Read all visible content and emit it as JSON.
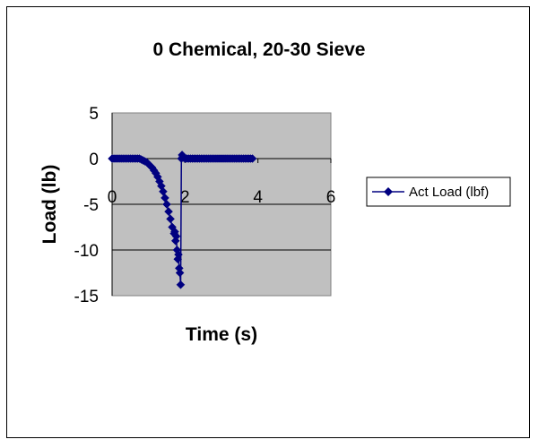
{
  "chart_data": {
    "type": "scatter",
    "title": "0 Chemical, 20-30 Sieve",
    "xlabel": "Time (s)",
    "ylabel": "Load (lb)",
    "xlim": [
      0,
      6
    ],
    "ylim": [
      -15,
      5
    ],
    "xticks": [
      "0",
      "2",
      "4",
      "6"
    ],
    "yticks": [
      "5",
      "0",
      "-5",
      "-10",
      "-15"
    ],
    "grid": true,
    "legend_position": "right",
    "plot_background": "#c0c0c0",
    "series": [
      {
        "name": "Act Load (lbf)",
        "color": "#000080",
        "marker": "diamond",
        "line": true,
        "x": [
          0,
          0.05,
          0.1,
          0.15,
          0.2,
          0.25,
          0.3,
          0.35,
          0.4,
          0.45,
          0.5,
          0.55,
          0.6,
          0.65,
          0.7,
          0.75,
          0.8,
          0.85,
          0.9,
          0.95,
          1.0,
          1.05,
          1.1,
          1.15,
          1.2,
          1.25,
          1.3,
          1.35,
          1.4,
          1.45,
          1.5,
          1.55,
          1.6,
          1.65,
          1.7,
          1.72,
          1.74,
          1.76,
          1.78,
          1.8,
          1.82,
          1.84,
          1.86,
          1.88,
          1.9,
          1.92,
          1.94,
          1.96,
          2.0,
          2.05,
          2.1,
          2.15,
          2.2,
          2.25,
          2.3,
          2.35,
          2.4,
          2.45,
          2.5,
          2.55,
          2.6,
          2.65,
          2.7,
          2.75,
          2.8,
          2.85,
          2.9,
          2.95,
          3.0,
          3.05,
          3.1,
          3.15,
          3.2,
          3.25,
          3.3,
          3.35,
          3.4,
          3.45,
          3.5,
          3.55,
          3.6,
          3.65,
          3.7,
          3.75,
          3.8,
          3.85
        ],
        "y": [
          0,
          0,
          0,
          0,
          0,
          0,
          0,
          0,
          0,
          0,
          0,
          0,
          0,
          0,
          0,
          0,
          -0.1,
          -0.2,
          -0.3,
          -0.4,
          -0.6,
          -0.8,
          -1.0,
          -1.3,
          -1.6,
          -2.0,
          -2.5,
          -3.0,
          -3.6,
          -4.3,
          -5.0,
          -5.8,
          -6.6,
          -7.5,
          -8.2,
          -8.0,
          -9.0,
          -8.5,
          -10.0,
          -11.0,
          -10.5,
          -12.0,
          -12.5,
          -13.8,
          0,
          0.4,
          0.2,
          0.1,
          0,
          0,
          0,
          0,
          0,
          0,
          0,
          0,
          0,
          0,
          0,
          0,
          0,
          0,
          0,
          0,
          0,
          0,
          0,
          0,
          0,
          0,
          0,
          0,
          0,
          0,
          0,
          0,
          0,
          0,
          0,
          0,
          0,
          0,
          0,
          0,
          0,
          0
        ]
      }
    ]
  }
}
